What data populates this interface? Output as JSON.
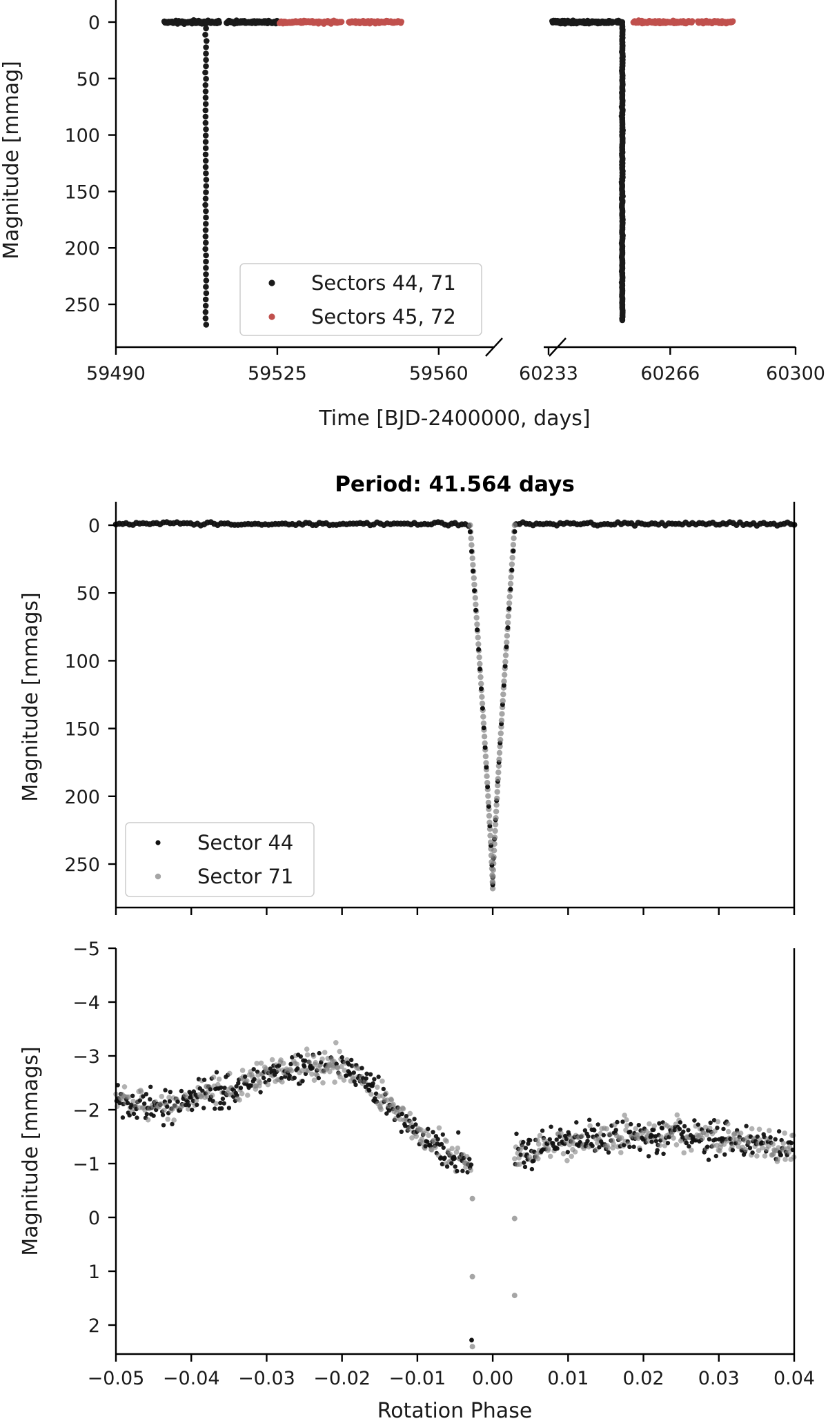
{
  "chart_data": [
    {
      "id": "top",
      "type": "scatter",
      "xlabel": "Time [BJD-2400000, days]",
      "ylabel": "Magnitude [mmag]",
      "y_inverted": true,
      "ylim": [
        -14,
        282
      ],
      "yticks": [
        0,
        50,
        100,
        150,
        200,
        250
      ],
      "broken_x_axis": true,
      "x_segments": [
        {
          "xlim": [
            59490,
            59572
          ],
          "ticks": [
            59490,
            59525,
            59560
          ]
        },
        {
          "xlim": [
            60233,
            60300
          ],
          "ticks": [
            60233,
            60266,
            60300
          ]
        }
      ],
      "legend": {
        "position": "lower-center",
        "entries": [
          "Sectors 44, 71",
          "Sectors 45, 72"
        ]
      },
      "series": [
        {
          "name": "Sectors 44, 71",
          "color": "#1a1a1a",
          "baseline_ranges": [
            [
              59500.5,
              59512.5
            ],
            [
              59514,
              59525
            ],
            [
              60234,
              60250.5
            ],
            [
              60251.5,
              60253
            ]
          ],
          "eclipses": [
            {
              "t": 59509.5,
              "depth": 268
            },
            {
              "t": 60253.0,
              "depth": 264
            }
          ]
        },
        {
          "name": "Sectors 45, 72",
          "color": "#c0504d",
          "baseline_ranges": [
            [
              59525.5,
              59539
            ],
            [
              59540.5,
              59552
            ],
            [
              60256,
              60272
            ],
            [
              60273.5,
              60283
            ]
          ]
        }
      ]
    },
    {
      "id": "middle",
      "type": "scatter",
      "title": "Period: 41.564 days",
      "ylabel": "Magnitude [mmags]",
      "y_inverted": true,
      "ylim": [
        -14,
        282
      ],
      "yticks": [
        0,
        50,
        100,
        150,
        200,
        250
      ],
      "xlim": [
        -0.05,
        0.04
      ],
      "legend": {
        "position": "lower-left",
        "entries": [
          "Sector 44",
          "Sector 71"
        ]
      },
      "eclipse": {
        "center_phase": 0.0,
        "half_width_phase": 0.003,
        "depth": 268
      },
      "series": [
        {
          "name": "Sector 44",
          "color": "#111111"
        },
        {
          "name": "Sector 71",
          "color": "#7f7f7f"
        }
      ]
    },
    {
      "id": "bottom",
      "type": "scatter",
      "xlabel": "Rotation Phase",
      "ylabel": "Magnitude [mmags]",
      "y_inverted": true,
      "ylim": [
        -5,
        2.5
      ],
      "yticks": [
        -5,
        -4,
        -3,
        -2,
        -1,
        0,
        1,
        2
      ],
      "xlim": [
        -0.05,
        0.04
      ],
      "xticks": [
        -0.05,
        -0.04,
        -0.03,
        -0.02,
        -0.01,
        0.0,
        0.01,
        0.02,
        0.03,
        0.04
      ],
      "xtick_labels": [
        "−0.05",
        "−0.04",
        "−0.03",
        "−0.02",
        "−0.01",
        "0.00",
        "0.01",
        "0.02",
        "0.03",
        "0.04"
      ],
      "trend": [
        {
          "x": -0.05,
          "y": -2.15
        },
        {
          "x": -0.045,
          "y": -2.05
        },
        {
          "x": -0.04,
          "y": -2.25
        },
        {
          "x": -0.035,
          "y": -2.35
        },
        {
          "x": -0.03,
          "y": -2.65
        },
        {
          "x": -0.025,
          "y": -2.75
        },
        {
          "x": -0.021,
          "y": -2.85
        },
        {
          "x": -0.017,
          "y": -2.55
        },
        {
          "x": -0.013,
          "y": -1.95
        },
        {
          "x": -0.009,
          "y": -1.45
        },
        {
          "x": -0.005,
          "y": -1.2
        },
        {
          "x": -0.003,
          "y": -1.0
        },
        {
          "x": 0.003,
          "y": -1.15
        },
        {
          "x": 0.008,
          "y": -1.35
        },
        {
          "x": 0.015,
          "y": -1.45
        },
        {
          "x": 0.02,
          "y": -1.55
        },
        {
          "x": 0.025,
          "y": -1.55
        },
        {
          "x": 0.03,
          "y": -1.45
        },
        {
          "x": 0.035,
          "y": -1.4
        },
        {
          "x": 0.04,
          "y": -1.25
        }
      ],
      "outliers": [
        {
          "x": -0.0027,
          "y": -0.35,
          "series": "Sector 71"
        },
        {
          "x": -0.0027,
          "y": 1.1,
          "series": "Sector 71"
        },
        {
          "x": -0.0028,
          "y": 2.28,
          "series": "Sector 44"
        },
        {
          "x": -0.0027,
          "y": 2.4,
          "series": "Sector 71"
        },
        {
          "x": 0.0029,
          "y": 0.02,
          "series": "Sector 71"
        },
        {
          "x": 0.0029,
          "y": 1.45,
          "series": "Sector 71"
        }
      ],
      "series": [
        {
          "name": "Sector 44",
          "color": "#111111"
        },
        {
          "name": "Sector 71",
          "color": "#7f7f7f"
        }
      ]
    }
  ]
}
